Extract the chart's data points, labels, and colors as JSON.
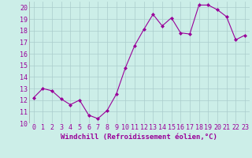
{
  "x": [
    0,
    1,
    2,
    3,
    4,
    5,
    6,
    7,
    8,
    9,
    10,
    11,
    12,
    13,
    14,
    15,
    16,
    17,
    18,
    19,
    20,
    21,
    22,
    23
  ],
  "y": [
    12.2,
    13.0,
    12.8,
    12.1,
    11.6,
    12.0,
    10.7,
    10.4,
    11.1,
    12.5,
    14.8,
    16.7,
    18.1,
    19.4,
    18.4,
    19.1,
    17.8,
    17.7,
    20.2,
    20.2,
    19.8,
    19.2,
    17.2,
    17.6
  ],
  "line_color": "#990099",
  "marker": "D",
  "marker_size": 2.0,
  "bg_color": "#cceee8",
  "grid_color": "#aacccc",
  "xlabel": "Windchill (Refroidissement éolien,°C)",
  "xlabel_color": "#990099",
  "xlabel_fontsize": 6.5,
  "tick_label_color": "#990099",
  "tick_fontsize": 6,
  "ylim": [
    10,
    20.5
  ],
  "xlim": [
    -0.5,
    23.5
  ],
  "yticks": [
    10,
    11,
    12,
    13,
    14,
    15,
    16,
    17,
    18,
    19,
    20
  ],
  "xticks": [
    0,
    1,
    2,
    3,
    4,
    5,
    6,
    7,
    8,
    9,
    10,
    11,
    12,
    13,
    14,
    15,
    16,
    17,
    18,
    19,
    20,
    21,
    22,
    23
  ]
}
